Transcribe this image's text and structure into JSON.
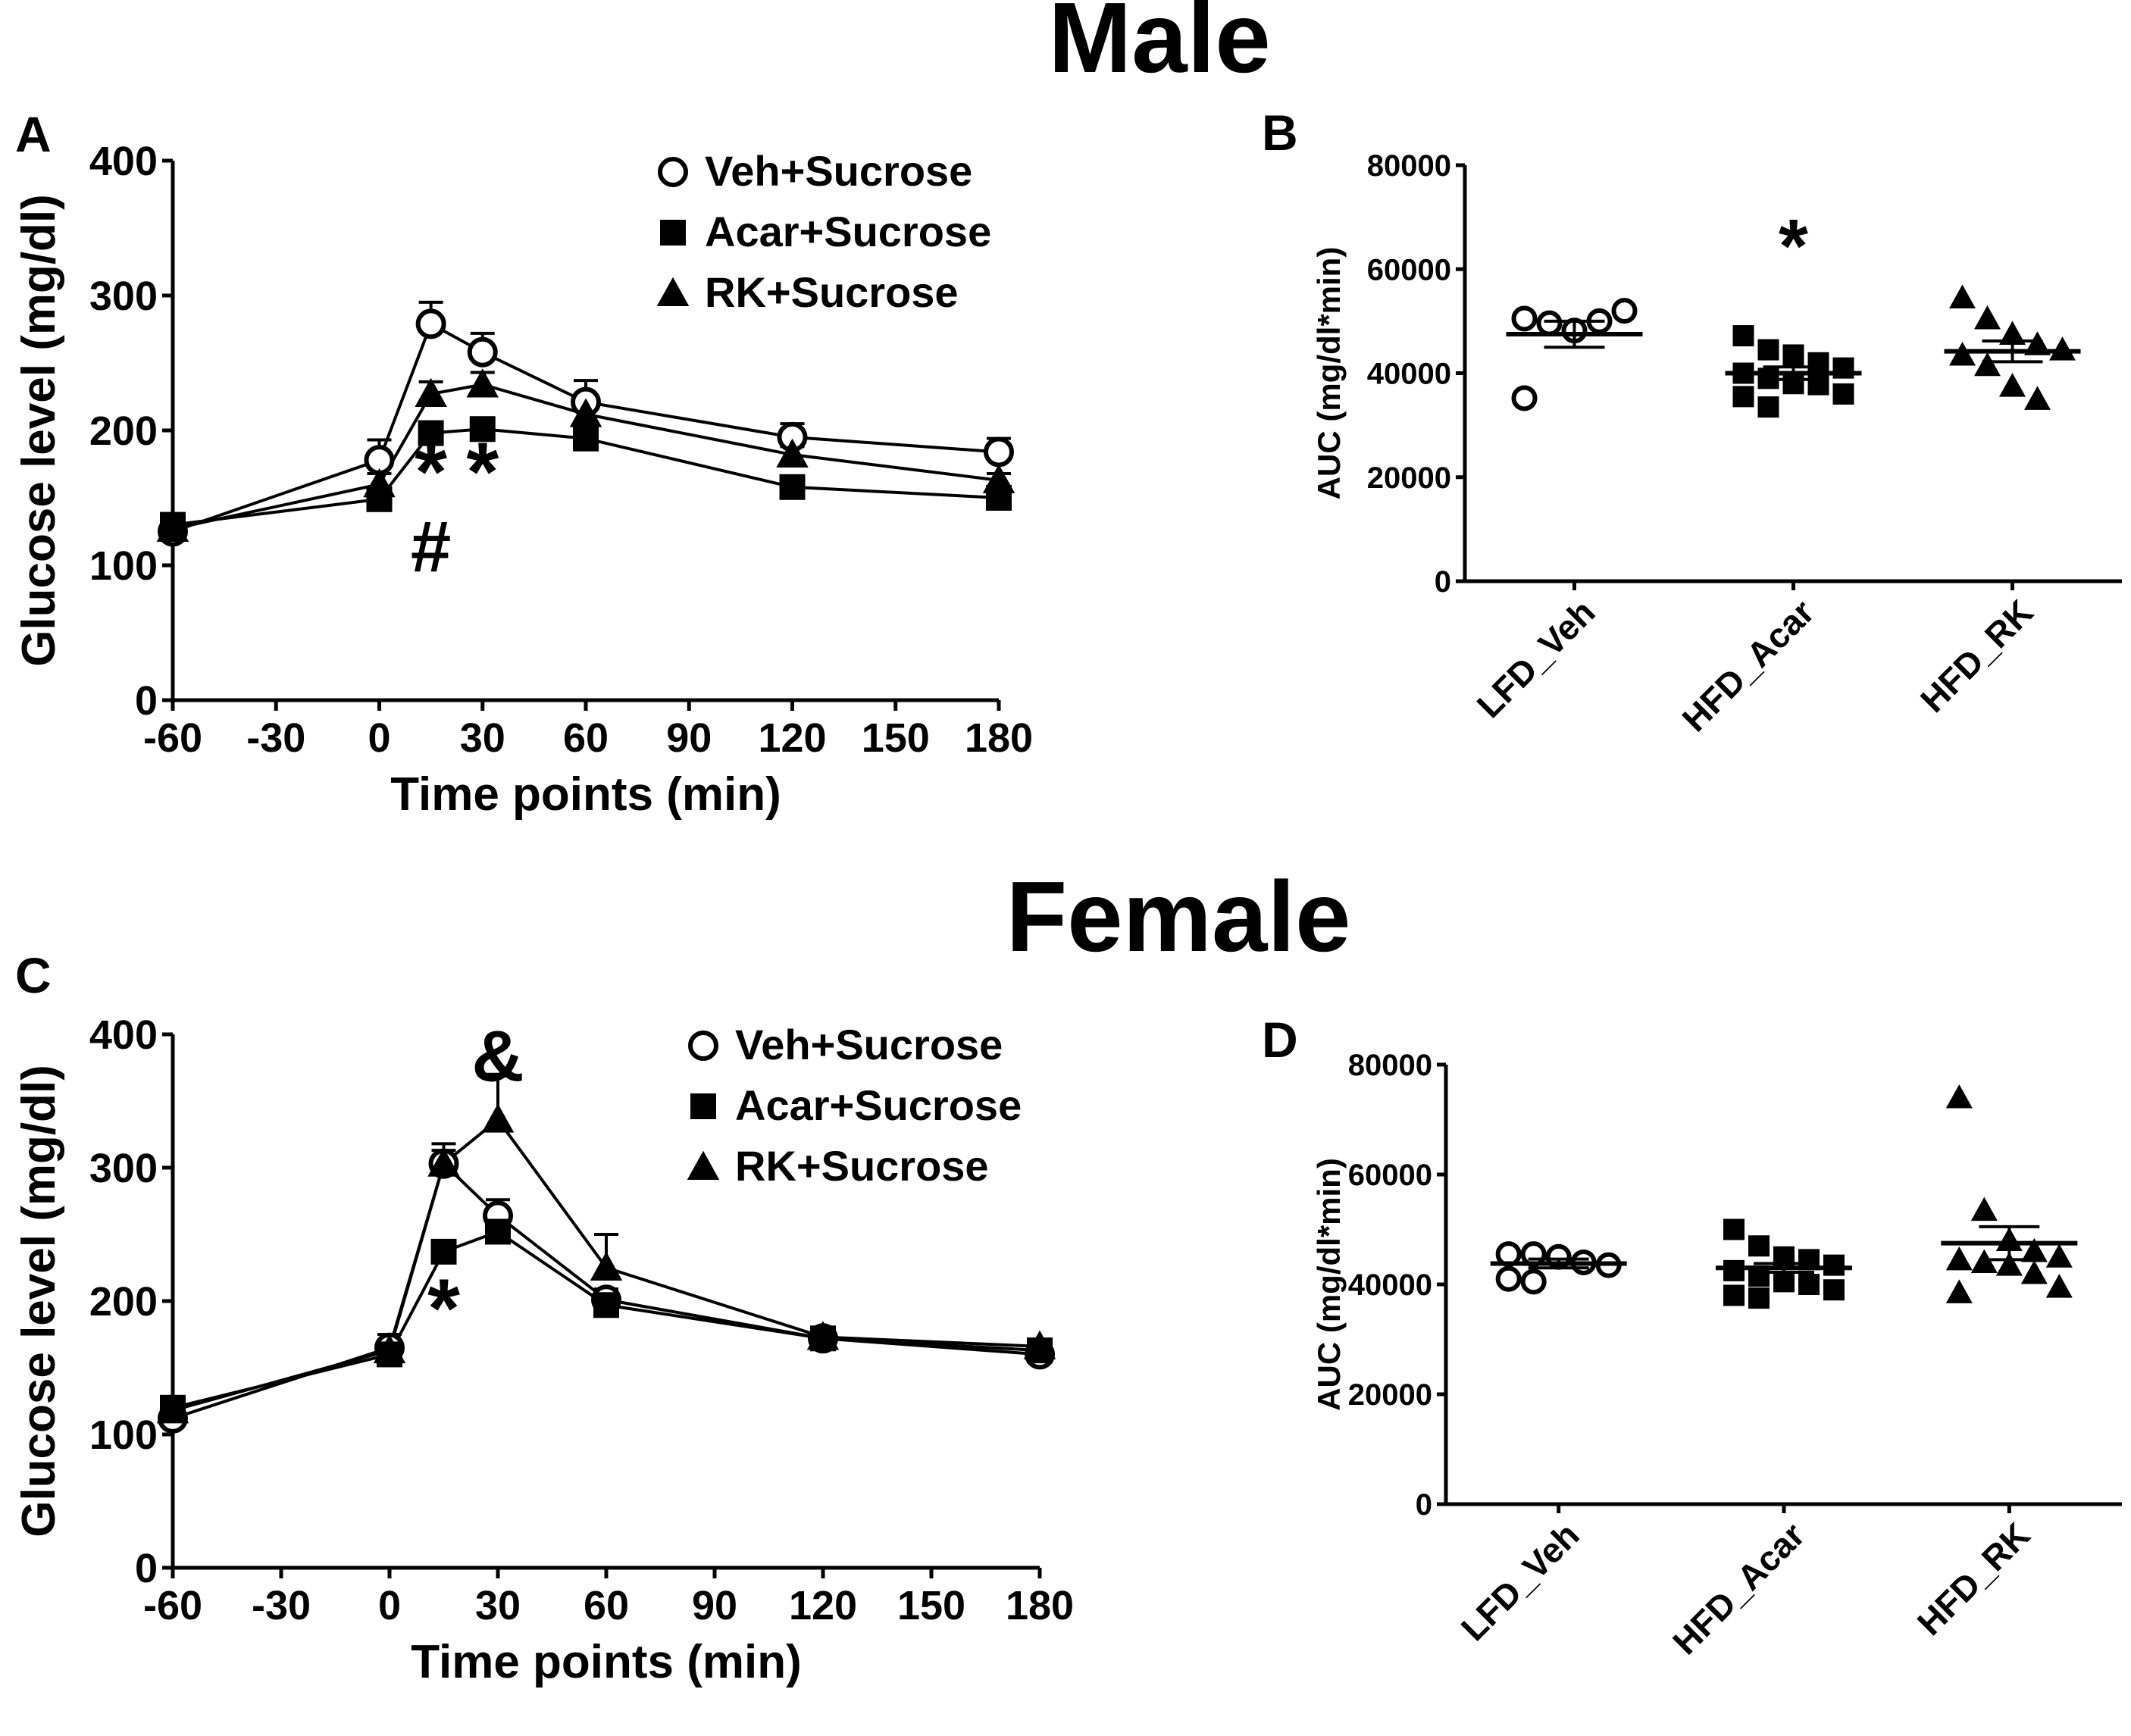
{
  "section_titles": {
    "male": "Male",
    "female": "Female"
  },
  "chart_data": [
    {
      "panel": "A",
      "type": "line",
      "xlabel": "Time points (min)",
      "ylabel": "Glucose level (mg/dl)",
      "xlim": [
        -60,
        180
      ],
      "ylim": [
        0,
        400
      ],
      "xticks": [
        "-60",
        "-30",
        "0",
        "30",
        "60",
        "90",
        "120",
        "150",
        "180"
      ],
      "yticks": [
        "0",
        "100",
        "200",
        "300",
        "400"
      ],
      "legend_position": "top-right",
      "series": [
        {
          "name": "Veh+Sucrose",
          "marker": "circle-open",
          "x": [
            -60,
            0,
            15,
            30,
            60,
            120,
            180
          ],
          "y": [
            125,
            178,
            279,
            258,
            221,
            195,
            184
          ],
          "err": [
            5,
            15,
            16,
            14,
            16,
            10,
            10
          ]
        },
        {
          "name": "Acar+Sucrose",
          "marker": "square",
          "x": [
            -60,
            0,
            15,
            30,
            60,
            120,
            180
          ],
          "y": [
            130,
            149,
            198,
            201,
            194,
            158,
            150
          ],
          "err": [
            4,
            6,
            6,
            6,
            6,
            5,
            5
          ]
        },
        {
          "name": "RK+Sucrose",
          "marker": "triangle",
          "x": [
            -60,
            0,
            15,
            30,
            60,
            120,
            180
          ],
          "y": [
            127,
            160,
            227,
            234,
            212,
            182,
            163
          ],
          "err": [
            4,
            8,
            9,
            9,
            8,
            6,
            5
          ]
        }
      ],
      "annotations": [
        {
          "text": "*",
          "x": 15,
          "y": 165
        },
        {
          "text": "*",
          "x": 30,
          "y": 165
        },
        {
          "text": "#",
          "x": 15,
          "y": 112
        }
      ]
    },
    {
      "panel": "B",
      "type": "scatter",
      "ylabel": "AUC (mg/dl*min)",
      "ylim": [
        0,
        80000
      ],
      "yticks": [
        "0",
        "20000",
        "40000",
        "60000",
        "80000"
      ],
      "categories": [
        "LFD_Veh",
        "HFD_Acar",
        "HFD_RK"
      ],
      "series": [
        {
          "name": "LFD_Veh",
          "marker": "circle-open",
          "mean": 47500,
          "sem": 2500,
          "values": [
            50500,
            49600,
            48200,
            50000,
            52000,
            35200
          ]
        },
        {
          "name": "HFD_Acar",
          "marker": "square",
          "mean": 40000,
          "sem": 1200,
          "values": [
            47200,
            44500,
            43500,
            42000,
            41000,
            40000,
            39000,
            38000,
            37800,
            36000,
            35500,
            33500
          ]
        },
        {
          "name": "HFD_RK",
          "marker": "triangle",
          "mean": 44200,
          "sem": 2000,
          "values": [
            54500,
            50500,
            47500,
            45500,
            44500,
            43500,
            41500,
            37500,
            35000
          ]
        }
      ],
      "annotations": [
        {
          "text": "*",
          "category": "HFD_Acar",
          "y": 65000
        }
      ]
    },
    {
      "panel": "C",
      "type": "line",
      "xlabel": "Time points (min)",
      "ylabel": "Glucose level (mg/dl)",
      "xlim": [
        -60,
        180
      ],
      "ylim": [
        0,
        400
      ],
      "xticks": [
        "-60",
        "-30",
        "0",
        "30",
        "60",
        "90",
        "120",
        "150",
        "180"
      ],
      "yticks": [
        "0",
        "100",
        "200",
        "300",
        "400"
      ],
      "legend_position": "top-right",
      "series": [
        {
          "name": "Veh+Sucrose",
          "marker": "circle-open",
          "x": [
            -60,
            0,
            15,
            30,
            60,
            120,
            180
          ],
          "y": [
            112,
            165,
            303,
            264,
            201,
            172,
            160
          ],
          "err": [
            4,
            10,
            15,
            12,
            8,
            5,
            5
          ]
        },
        {
          "name": "Acar+Sucrose",
          "marker": "square",
          "x": [
            -60,
            0,
            15,
            30,
            60,
            120,
            180
          ],
          "y": [
            120,
            160,
            237,
            252,
            197,
            172,
            163
          ],
          "err": [
            4,
            8,
            8,
            15,
            8,
            5,
            5
          ]
        },
        {
          "name": "RK+Sucrose",
          "marker": "triangle",
          "x": [
            -60,
            0,
            15,
            30,
            60,
            120,
            180
          ],
          "y": [
            118,
            163,
            303,
            336,
            225,
            173,
            166
          ],
          "err": [
            4,
            8,
            10,
            34,
            25,
            5,
            5
          ]
        }
      ],
      "annotations": [
        {
          "text": "&",
          "x": 30,
          "y": 382
        },
        {
          "text": "*",
          "x": 15,
          "y": 190
        }
      ]
    },
    {
      "panel": "D",
      "type": "scatter",
      "ylabel": "AUC (mg/dl*min)",
      "ylim": [
        0,
        80000
      ],
      "yticks": [
        "0",
        "20000",
        "40000",
        "60000",
        "80000"
      ],
      "categories": [
        "LFD_Veh",
        "HFD_Acar",
        "HFD_RK"
      ],
      "series": [
        {
          "name": "LFD_Veh",
          "marker": "circle-open",
          "mean": 43800,
          "sem": 800,
          "values": [
            45500,
            45500,
            45000,
            44000,
            43500,
            41000,
            40500
          ]
        },
        {
          "name": "HFD_Acar",
          "marker": "square",
          "mean": 43000,
          "sem": 800,
          "values": [
            50000,
            47000,
            45000,
            44500,
            43500,
            42500,
            41500,
            40500,
            40000,
            39000,
            38000,
            37500
          ]
        },
        {
          "name": "HFD_RK",
          "marker": "triangle",
          "mean": 47500,
          "sem": 3000,
          "values": [
            74000,
            53500,
            48000,
            46000,
            45000,
            44500,
            44000,
            43500,
            42000,
            39500,
            38500
          ]
        }
      ]
    }
  ]
}
